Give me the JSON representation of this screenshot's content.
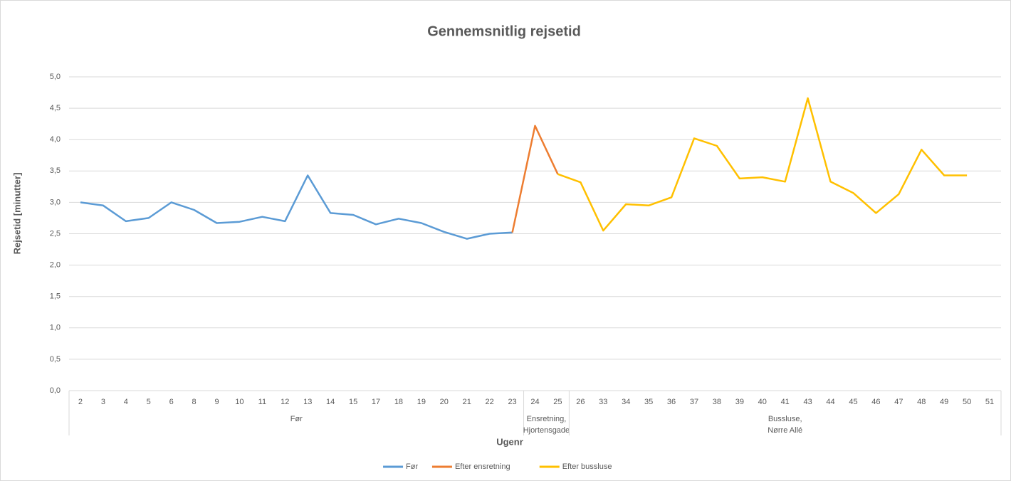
{
  "chart_data": {
    "type": "line",
    "title": "Gennemsnitlig rejsetid",
    "ylabel": "Rejsetid [minutter]",
    "xlabel": "Ugenr",
    "groups": [
      {
        "label": [
          "Før"
        ],
        "categories": [
          "2",
          "3",
          "4",
          "5",
          "6",
          "8",
          "9",
          "10",
          "11",
          "12",
          "13",
          "14",
          "15",
          "17",
          "18",
          "19",
          "20",
          "21",
          "22",
          "23"
        ]
      },
      {
        "label": [
          "Ensretning,",
          "Hjortensgade"
        ],
        "categories": [
          "24",
          "25"
        ]
      },
      {
        "label": [
          "Bussluse,",
          "Nørre Allé"
        ],
        "categories": [
          "26",
          "33",
          "34",
          "35",
          "36",
          "37",
          "38",
          "39",
          "40",
          "41",
          "43",
          "44",
          "45",
          "46",
          "47",
          "48",
          "49",
          "50",
          "51"
        ]
      }
    ],
    "series": [
      {
        "name": "Før",
        "color": "#5b9bd5",
        "values": [
          3.0,
          2.95,
          2.7,
          2.75,
          3.0,
          2.88,
          2.67,
          2.69,
          2.77,
          2.7,
          3.43,
          2.83,
          2.8,
          2.65,
          2.74,
          2.67,
          2.53,
          2.42,
          2.5,
          2.52,
          null,
          null,
          null,
          null,
          null,
          null,
          null,
          null,
          null,
          null,
          null,
          null,
          null,
          null,
          null,
          null,
          null,
          null,
          null,
          null,
          null
        ]
      },
      {
        "name": "Efter ensretning",
        "color": "#ed7d31",
        "values": [
          null,
          null,
          null,
          null,
          null,
          null,
          null,
          null,
          null,
          null,
          null,
          null,
          null,
          null,
          null,
          null,
          null,
          null,
          null,
          2.52,
          4.22,
          3.45,
          null,
          null,
          null,
          null,
          null,
          null,
          null,
          null,
          null,
          null,
          null,
          null,
          null,
          null,
          null,
          null,
          null,
          null,
          null
        ]
      },
      {
        "name": "Efter bussluse",
        "color": "#ffc000",
        "values": [
          null,
          null,
          null,
          null,
          null,
          null,
          null,
          null,
          null,
          null,
          null,
          null,
          null,
          null,
          null,
          null,
          null,
          null,
          null,
          null,
          null,
          3.45,
          3.32,
          2.55,
          2.97,
          2.95,
          3.08,
          4.02,
          3.9,
          3.38,
          3.4,
          3.33,
          4.66,
          3.33,
          3.15,
          2.83,
          3.13,
          3.84,
          3.43,
          3.43,
          null
        ]
      }
    ],
    "ylim": [
      0,
      5
    ],
    "yticks": [
      {
        "value": 0,
        "label": "0,0"
      },
      {
        "value": 0.5,
        "label": "0,5"
      },
      {
        "value": 1,
        "label": "1,0"
      },
      {
        "value": 1.5,
        "label": "1,5"
      },
      {
        "value": 2,
        "label": "2,0"
      },
      {
        "value": 2.5,
        "label": "2,5"
      },
      {
        "value": 3,
        "label": "3,0"
      },
      {
        "value": 3.5,
        "label": "3,5"
      },
      {
        "value": 4,
        "label": "4,0"
      },
      {
        "value": 4.5,
        "label": "4,5"
      },
      {
        "value": 5,
        "label": "5,0"
      }
    ],
    "grid": true,
    "legend": "bottom"
  }
}
